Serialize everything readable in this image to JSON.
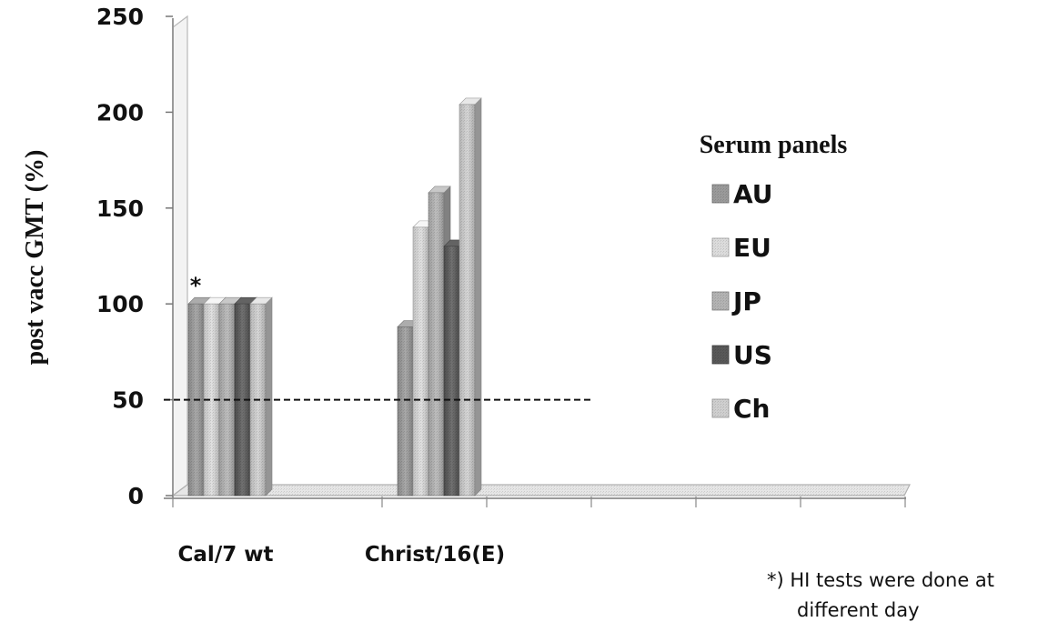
{
  "chart_data": {
    "type": "bar",
    "title": "",
    "xlabel": "",
    "ylabel": "post vacc GMT (%)",
    "ylim": [
      0,
      250
    ],
    "yticks": [
      "0",
      "50",
      "100",
      "150",
      "200",
      "250"
    ],
    "categories": [
      "Cal/7 wt",
      "Christ/16(E)"
    ],
    "series": [
      {
        "name": "AU",
        "values": [
          100,
          88
        ],
        "color": "#9a9a9a"
      },
      {
        "name": "EU",
        "values": [
          100,
          140
        ],
        "color": "#dcdcdc"
      },
      {
        "name": "JP",
        "values": [
          100,
          158
        ],
        "color": "#b3b3b3"
      },
      {
        "name": "US",
        "values": [
          100,
          130
        ],
        "color": "#585858"
      },
      {
        "name": "Ch",
        "values": [
          100,
          204
        ],
        "color": "#cfcfcf"
      }
    ],
    "reference_line": {
      "value": 50,
      "style": "dashed"
    },
    "legend": {
      "title": "Serum panels",
      "position": "right"
    },
    "annotations": [
      {
        "text": "*",
        "category": "Cal/7 wt"
      }
    ],
    "grid": false
  },
  "footnote": {
    "line1": "*) HI tests were done at",
    "line2": "different day"
  }
}
